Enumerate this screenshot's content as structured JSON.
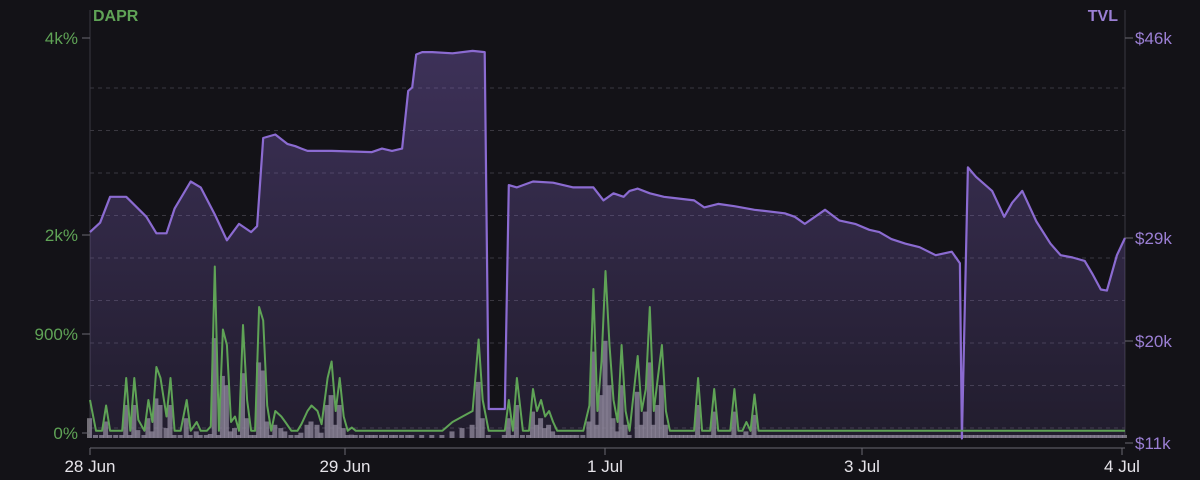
{
  "chart_data": {
    "type": "line",
    "left_axis": {
      "label": "DAPR",
      "ticks": [
        {
          "label": "0%",
          "value": 0
        },
        {
          "label": "900%",
          "value": 900
        },
        {
          "label": "2k%",
          "value": 2000
        },
        {
          "label": "4k%",
          "value": 4000
        }
      ],
      "color": "#5fa356"
    },
    "right_axis": {
      "label": "TVL",
      "ticks": [
        {
          "label": "$11k",
          "value": 11000
        },
        {
          "label": "$20k",
          "value": 20000
        },
        {
          "label": "$29k",
          "value": 29000
        },
        {
          "label": "$46k",
          "value": 46000
        }
      ],
      "color": "#9b7fd4"
    },
    "x_ticks": [
      {
        "label": "28 Jun",
        "day": 0
      },
      {
        "label": "29 Jun",
        "day": 1
      },
      {
        "label": "1 Jul",
        "day": 3
      },
      {
        "label": "3 Jul",
        "day": 5
      },
      {
        "label": "4 Jul",
        "day": 6
      }
    ],
    "grid": true,
    "series": [
      {
        "kind": "area",
        "color": "#8b6bd1",
        "axis": "right",
        "points": [
          [
            0,
            29.5
          ],
          [
            0.05,
            30.3
          ],
          [
            0.1,
            32.5
          ],
          [
            0.18,
            32.5
          ],
          [
            0.28,
            30.8
          ],
          [
            0.33,
            29.4
          ],
          [
            0.38,
            29.4
          ],
          [
            0.42,
            31.5
          ],
          [
            0.5,
            33.8
          ],
          [
            0.55,
            33.3
          ],
          [
            0.62,
            31
          ],
          [
            0.68,
            28.8
          ],
          [
            0.74,
            30.2
          ],
          [
            0.8,
            29.5
          ],
          [
            0.83,
            30
          ],
          [
            0.86,
            37.5
          ],
          [
            0.92,
            37.8
          ],
          [
            0.98,
            37
          ],
          [
            1.02,
            36.8
          ],
          [
            1.05,
            36.6
          ],
          [
            1.08,
            36.4
          ],
          [
            1.2,
            36.4
          ],
          [
            1.4,
            36.3
          ],
          [
            1.45,
            36.6
          ],
          [
            1.5,
            36.4
          ],
          [
            1.55,
            36.6
          ],
          [
            1.58,
            41.5
          ],
          [
            1.6,
            41.8
          ],
          [
            1.62,
            44.6
          ],
          [
            1.65,
            44.8
          ],
          [
            1.7,
            44.8
          ],
          [
            1.8,
            44.7
          ],
          [
            1.9,
            44.9
          ],
          [
            1.96,
            44.8
          ],
          [
            1.98,
            14
          ],
          [
            2.06,
            14
          ],
          [
            2.08,
            33.5
          ],
          [
            2.12,
            33.3
          ],
          [
            2.2,
            33.8
          ],
          [
            2.3,
            33.7
          ],
          [
            2.4,
            33.3
          ],
          [
            2.5,
            33.3
          ],
          [
            2.55,
            32.2
          ],
          [
            2.6,
            32.8
          ],
          [
            2.65,
            32.5
          ],
          [
            2.68,
            33
          ],
          [
            2.72,
            33.2
          ],
          [
            2.78,
            32.8
          ],
          [
            2.85,
            32.5
          ],
          [
            2.9,
            32.4
          ],
          [
            3,
            32.2
          ],
          [
            3.05,
            31.6
          ],
          [
            3.12,
            31.9
          ],
          [
            3.2,
            31.7
          ],
          [
            3.3,
            31.4
          ],
          [
            3.45,
            31.1
          ],
          [
            3.5,
            30.8
          ],
          [
            3.55,
            30.2
          ],
          [
            3.65,
            31.4
          ],
          [
            3.72,
            30.5
          ],
          [
            3.8,
            30.2
          ],
          [
            3.87,
            29.7
          ],
          [
            3.92,
            29.5
          ],
          [
            3.98,
            28.9
          ],
          [
            4.05,
            28.5
          ],
          [
            4.12,
            28.2
          ],
          [
            4.2,
            27.5
          ],
          [
            4.28,
            27.8
          ],
          [
            4.32,
            26.8
          ],
          [
            4.33,
            11.4
          ],
          [
            4.36,
            35
          ],
          [
            4.4,
            34.2
          ],
          [
            4.48,
            33
          ],
          [
            4.54,
            30.8
          ],
          [
            4.58,
            32
          ],
          [
            4.63,
            33
          ],
          [
            4.7,
            30.4
          ],
          [
            4.77,
            28.5
          ],
          [
            4.82,
            27.5
          ],
          [
            4.88,
            27.3
          ],
          [
            4.94,
            27
          ],
          [
            4.98,
            25.8
          ],
          [
            5.02,
            24.5
          ],
          [
            5.05,
            24.4
          ],
          [
            5.1,
            27.5
          ],
          [
            5.14,
            29
          ]
        ]
      },
      {
        "kind": "line",
        "color": "#5fa356",
        "axis": "left",
        "points": [
          [
            0,
            300
          ],
          [
            0.03,
            20
          ],
          [
            0.06,
            20
          ],
          [
            0.08,
            250
          ],
          [
            0.1,
            20
          ],
          [
            0.13,
            20
          ],
          [
            0.16,
            20
          ],
          [
            0.18,
            500
          ],
          [
            0.2,
            20
          ],
          [
            0.22,
            500
          ],
          [
            0.24,
            120
          ],
          [
            0.27,
            20
          ],
          [
            0.29,
            300
          ],
          [
            0.31,
            100
          ],
          [
            0.33,
            600
          ],
          [
            0.35,
            500
          ],
          [
            0.38,
            150
          ],
          [
            0.4,
            500
          ],
          [
            0.42,
            20
          ],
          [
            0.45,
            20
          ],
          [
            0.48,
            300
          ],
          [
            0.5,
            20
          ],
          [
            0.53,
            100
          ],
          [
            0.55,
            20
          ],
          [
            0.58,
            20
          ],
          [
            0.6,
            60
          ],
          [
            0.62,
            1650
          ],
          [
            0.64,
            20
          ],
          [
            0.66,
            950
          ],
          [
            0.68,
            800
          ],
          [
            0.7,
            100
          ],
          [
            0.72,
            150
          ],
          [
            0.74,
            20
          ],
          [
            0.76,
            1000
          ],
          [
            0.78,
            300
          ],
          [
            0.8,
            20
          ],
          [
            0.82,
            20
          ],
          [
            0.84,
            1200
          ],
          [
            0.86,
            1050
          ],
          [
            0.88,
            250
          ],
          [
            0.9,
            20
          ],
          [
            0.92,
            200
          ],
          [
            0.95,
            150
          ],
          [
            0.97,
            100
          ],
          [
            1,
            20
          ],
          [
            1.03,
            20
          ],
          [
            1.05,
            80
          ],
          [
            1.08,
            200
          ],
          [
            1.1,
            250
          ],
          [
            1.13,
            200
          ],
          [
            1.15,
            80
          ],
          [
            1.18,
            500
          ],
          [
            1.2,
            650
          ],
          [
            1.22,
            200
          ],
          [
            1.24,
            500
          ],
          [
            1.26,
            150
          ],
          [
            1.28,
            20
          ],
          [
            1.3,
            50
          ],
          [
            1.32,
            20
          ],
          [
            1.35,
            20
          ],
          [
            1.38,
            20
          ],
          [
            1.4,
            20
          ],
          [
            1.42,
            20
          ],
          [
            1.45,
            20
          ],
          [
            1.47,
            20
          ],
          [
            1.5,
            20
          ],
          [
            1.52,
            20
          ],
          [
            1.55,
            20
          ],
          [
            1.58,
            20
          ],
          [
            1.6,
            20
          ],
          [
            1.65,
            20
          ],
          [
            1.7,
            20
          ],
          [
            1.75,
            20
          ],
          [
            1.8,
            100
          ],
          [
            1.85,
            150
          ],
          [
            1.9,
            200
          ],
          [
            1.93,
            850
          ],
          [
            1.95,
            300
          ],
          [
            1.98,
            20
          ],
          [
            2.06,
            20
          ],
          [
            2.08,
            300
          ],
          [
            2.1,
            20
          ],
          [
            2.12,
            500
          ],
          [
            2.15,
            20
          ],
          [
            2.18,
            20
          ],
          [
            2.2,
            400
          ],
          [
            2.22,
            200
          ],
          [
            2.24,
            300
          ],
          [
            2.26,
            150
          ],
          [
            2.28,
            200
          ],
          [
            2.3,
            100
          ],
          [
            2.32,
            20
          ],
          [
            2.34,
            20
          ],
          [
            2.36,
            20
          ],
          [
            2.38,
            20
          ],
          [
            2.4,
            20
          ],
          [
            2.42,
            20
          ],
          [
            2.45,
            20
          ],
          [
            2.48,
            250
          ],
          [
            2.5,
            1400
          ],
          [
            2.52,
            200
          ],
          [
            2.54,
            650
          ],
          [
            2.56,
            1600
          ],
          [
            2.58,
            800
          ],
          [
            2.6,
            300
          ],
          [
            2.62,
            100
          ],
          [
            2.64,
            800
          ],
          [
            2.66,
            200
          ],
          [
            2.68,
            20
          ],
          [
            2.72,
            700
          ],
          [
            2.74,
            200
          ],
          [
            2.76,
            400
          ],
          [
            2.78,
            1200
          ],
          [
            2.8,
            200
          ],
          [
            2.82,
            500
          ],
          [
            2.84,
            800
          ],
          [
            2.86,
            200
          ],
          [
            2.88,
            20
          ],
          [
            2.9,
            20
          ],
          [
            2.92,
            20
          ],
          [
            2.94,
            20
          ],
          [
            2.96,
            20
          ],
          [
            2.98,
            20
          ],
          [
            3,
            20
          ],
          [
            3.02,
            500
          ],
          [
            3.04,
            20
          ],
          [
            3.06,
            20
          ],
          [
            3.08,
            20
          ],
          [
            3.1,
            400
          ],
          [
            3.12,
            20
          ],
          [
            3.14,
            20
          ],
          [
            3.16,
            20
          ],
          [
            3.18,
            20
          ],
          [
            3.2,
            400
          ],
          [
            3.22,
            20
          ],
          [
            3.24,
            20
          ],
          [
            3.26,
            100
          ],
          [
            3.28,
            20
          ],
          [
            3.3,
            350
          ],
          [
            3.32,
            20
          ],
          [
            3.34,
            20
          ],
          [
            3.36,
            20
          ],
          [
            3.38,
            20
          ],
          [
            3.4,
            20
          ],
          [
            3.42,
            20
          ],
          [
            3.44,
            20
          ],
          [
            3.46,
            20
          ],
          [
            3.48,
            20
          ],
          [
            3.5,
            20
          ],
          [
            3.52,
            20
          ],
          [
            3.54,
            20
          ],
          [
            3.56,
            20
          ],
          [
            3.58,
            20
          ],
          [
            3.6,
            20
          ],
          [
            3.62,
            20
          ],
          [
            3.64,
            20
          ],
          [
            3.66,
            20
          ],
          [
            3.68,
            20
          ],
          [
            3.7,
            20
          ],
          [
            3.72,
            20
          ],
          [
            3.74,
            20
          ],
          [
            3.76,
            20
          ],
          [
            3.78,
            20
          ],
          [
            3.8,
            20
          ],
          [
            3.82,
            20
          ],
          [
            3.84,
            20
          ],
          [
            3.86,
            20
          ],
          [
            3.88,
            20
          ],
          [
            3.9,
            20
          ],
          [
            3.92,
            20
          ],
          [
            3.94,
            20
          ],
          [
            3.96,
            20
          ],
          [
            3.98,
            20
          ],
          [
            4,
            20
          ],
          [
            4.02,
            20
          ],
          [
            4.04,
            20
          ],
          [
            4.06,
            20
          ],
          [
            4.08,
            20
          ],
          [
            4.1,
            20
          ],
          [
            4.12,
            20
          ],
          [
            4.14,
            20
          ],
          [
            4.16,
            20
          ],
          [
            4.18,
            20
          ],
          [
            4.2,
            20
          ],
          [
            4.22,
            20
          ],
          [
            4.24,
            20
          ],
          [
            4.26,
            20
          ],
          [
            4.28,
            20
          ],
          [
            4.3,
            20
          ],
          [
            4.32,
            20
          ],
          [
            4.34,
            20
          ],
          [
            4.36,
            20
          ],
          [
            4.38,
            20
          ],
          [
            4.4,
            20
          ],
          [
            4.42,
            20
          ],
          [
            4.44,
            20
          ],
          [
            4.46,
            20
          ],
          [
            4.48,
            20
          ],
          [
            4.5,
            20
          ],
          [
            4.52,
            20
          ],
          [
            4.54,
            20
          ],
          [
            4.56,
            20
          ],
          [
            4.58,
            20
          ],
          [
            4.6,
            20
          ],
          [
            4.62,
            20
          ],
          [
            4.64,
            20
          ],
          [
            4.66,
            20
          ],
          [
            4.68,
            20
          ],
          [
            4.7,
            20
          ],
          [
            4.72,
            20
          ],
          [
            4.74,
            20
          ],
          [
            4.76,
            20
          ],
          [
            4.78,
            20
          ],
          [
            4.8,
            20
          ],
          [
            4.82,
            20
          ],
          [
            4.84,
            20
          ],
          [
            4.86,
            20
          ],
          [
            4.88,
            20
          ],
          [
            4.9,
            20
          ],
          [
            4.92,
            20
          ],
          [
            4.94,
            20
          ],
          [
            4.96,
            20
          ],
          [
            4.98,
            20
          ],
          [
            5,
            20
          ],
          [
            5.02,
            20
          ],
          [
            5.04,
            20
          ],
          [
            5.06,
            20
          ],
          [
            5.08,
            20
          ],
          [
            5.1,
            20
          ],
          [
            5.12,
            20
          ],
          [
            5.14,
            20
          ]
        ]
      }
    ]
  }
}
